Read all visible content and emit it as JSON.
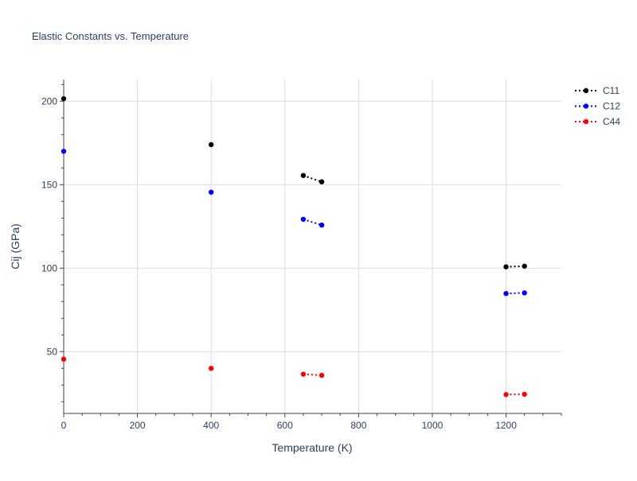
{
  "chart_data": {
    "type": "scatter",
    "title": "Elastic Constants vs. Temperature",
    "xlabel": "Temperature (K)",
    "ylabel": "Cij (GPa)",
    "xlim": [
      0,
      1350
    ],
    "ylim": [
      13,
      213
    ],
    "xticks": [
      0,
      200,
      400,
      600,
      800,
      1000,
      1200
    ],
    "yticks": [
      50,
      100,
      150,
      200
    ],
    "grid": true,
    "legend_position": "top-right",
    "line_style": "dotted",
    "series": [
      {
        "name": "C11",
        "color": "#000000",
        "segments": [
          [
            [
              0,
              201.5
            ]
          ],
          [
            [
              400,
              174.0
            ]
          ],
          [
            [
              650,
              155.5
            ],
            [
              700,
              151.7
            ]
          ],
          [
            [
              1200,
              100.8
            ],
            [
              1250,
              101.2
            ]
          ]
        ]
      },
      {
        "name": "C12",
        "color": "#0000ff",
        "segments": [
          [
            [
              0,
              170.0
            ]
          ],
          [
            [
              400,
              145.5
            ]
          ],
          [
            [
              650,
              129.3
            ],
            [
              700,
              125.8
            ]
          ],
          [
            [
              1200,
              84.8
            ],
            [
              1250,
              85.2
            ]
          ]
        ]
      },
      {
        "name": "C44",
        "color": "#ff0000",
        "segments": [
          [
            [
              0,
              45.5
            ]
          ],
          [
            [
              400,
              40.0
            ]
          ],
          [
            [
              650,
              36.5
            ],
            [
              700,
              35.8
            ]
          ],
          [
            [
              1200,
              24.3
            ],
            [
              1250,
              24.5
            ]
          ]
        ]
      }
    ]
  }
}
